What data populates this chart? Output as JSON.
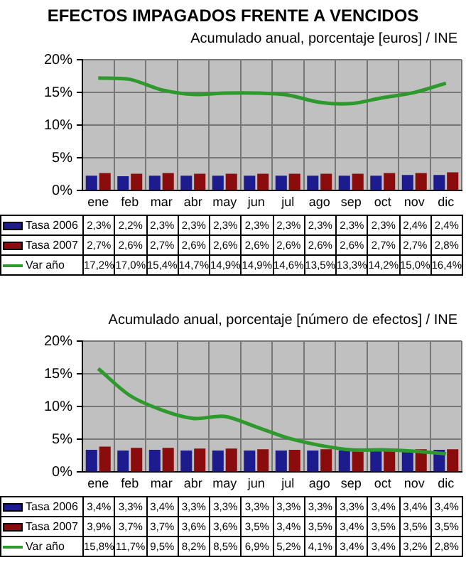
{
  "chart_data": [
    {
      "type": "bar",
      "title": "EFECTOS IMPAGADOS FRENTE A VENCIDOS",
      "subtitle": "Acumulado anual, porcentaje [euros] / INE",
      "categories": [
        "ene",
        "feb",
        "mar",
        "abr",
        "may",
        "jun",
        "jul",
        "ago",
        "sep",
        "oct",
        "nov",
        "dic"
      ],
      "ylim": [
        0,
        20
      ],
      "yticks": [
        {
          "value": 0,
          "label": "0%"
        },
        {
          "value": 5,
          "label": "5%"
        },
        {
          "value": 10,
          "label": "10%"
        },
        {
          "value": 15,
          "label": "15%"
        },
        {
          "value": 20,
          "label": "20%"
        }
      ],
      "grid": true,
      "legend": "bottom",
      "series": [
        {
          "name": "Tasa 2006",
          "color": "#1c1c8e",
          "values": [
            2.3,
            2.2,
            2.3,
            2.3,
            2.3,
            2.3,
            2.3,
            2.3,
            2.3,
            2.3,
            2.4,
            2.4
          ],
          "value_labels": [
            "2,3%",
            "2,2%",
            "2,3%",
            "2,3%",
            "2,3%",
            "2,3%",
            "2,3%",
            "2,3%",
            "2,3%",
            "2,3%",
            "2,4%",
            "2,4%"
          ]
        },
        {
          "name": "Tasa 2007",
          "color": "#8a0c0c",
          "values": [
            2.7,
            2.6,
            2.7,
            2.6,
            2.6,
            2.6,
            2.6,
            2.6,
            2.6,
            2.7,
            2.7,
            2.8
          ],
          "value_labels": [
            "2,7%",
            "2,6%",
            "2,7%",
            "2,6%",
            "2,6%",
            "2,6%",
            "2,6%",
            "2,6%",
            "2,6%",
            "2,7%",
            "2,7%",
            "2,8%"
          ]
        },
        {
          "name": "Var año",
          "type": "line",
          "color": "#2e9a2e",
          "values": [
            17.2,
            17.0,
            15.4,
            14.7,
            14.9,
            14.9,
            14.6,
            13.5,
            13.3,
            14.2,
            15.0,
            16.4
          ],
          "value_labels": [
            "17,2%",
            "17,0%",
            "15,4%",
            "14,7%",
            "14,9%",
            "14,9%",
            "14,6%",
            "13,5%",
            "13,3%",
            "14,2%",
            "15,0%",
            "16,4%"
          ]
        }
      ]
    },
    {
      "type": "bar",
      "subtitle": "Acumulado anual, porcentaje [número de efectos] / INE",
      "categories": [
        "ene",
        "feb",
        "mar",
        "abr",
        "may",
        "jun",
        "jul",
        "ago",
        "sep",
        "oct",
        "nov",
        "dic"
      ],
      "ylim": [
        0,
        20
      ],
      "yticks": [
        {
          "value": 0,
          "label": "0%"
        },
        {
          "value": 5,
          "label": "5%"
        },
        {
          "value": 10,
          "label": "10%"
        },
        {
          "value": 15,
          "label": "15%"
        },
        {
          "value": 20,
          "label": "20%"
        }
      ],
      "grid": true,
      "legend": "bottom",
      "series": [
        {
          "name": "Tasa 2006",
          "color": "#1c1c8e",
          "values": [
            3.4,
            3.3,
            3.4,
            3.3,
            3.3,
            3.3,
            3.3,
            3.3,
            3.3,
            3.4,
            3.4,
            3.4
          ],
          "value_labels": [
            "3,4%",
            "3,3%",
            "3,4%",
            "3,3%",
            "3,3%",
            "3,3%",
            "3,3%",
            "3,3%",
            "3,3%",
            "3,4%",
            "3,4%",
            "3,4%"
          ]
        },
        {
          "name": "Tasa 2007",
          "color": "#8a0c0c",
          "values": [
            3.9,
            3.7,
            3.7,
            3.6,
            3.6,
            3.5,
            3.4,
            3.5,
            3.4,
            3.5,
            3.5,
            3.5
          ],
          "value_labels": [
            "3,9%",
            "3,7%",
            "3,7%",
            "3,6%",
            "3,6%",
            "3,5%",
            "3,4%",
            "3,5%",
            "3,4%",
            "3,5%",
            "3,5%",
            "3,5%"
          ]
        },
        {
          "name": "Var año",
          "type": "line",
          "color": "#2e9a2e",
          "values": [
            15.8,
            11.7,
            9.5,
            8.2,
            8.5,
            6.9,
            5.2,
            4.1,
            3.4,
            3.4,
            3.2,
            2.8
          ],
          "value_labels": [
            "15,8%",
            "11,7%",
            "9,5%",
            "8,2%",
            "8,5%",
            "6,9%",
            "5,2%",
            "4,1%",
            "3,4%",
            "3,4%",
            "3,2%",
            "2,8%"
          ]
        }
      ]
    }
  ]
}
